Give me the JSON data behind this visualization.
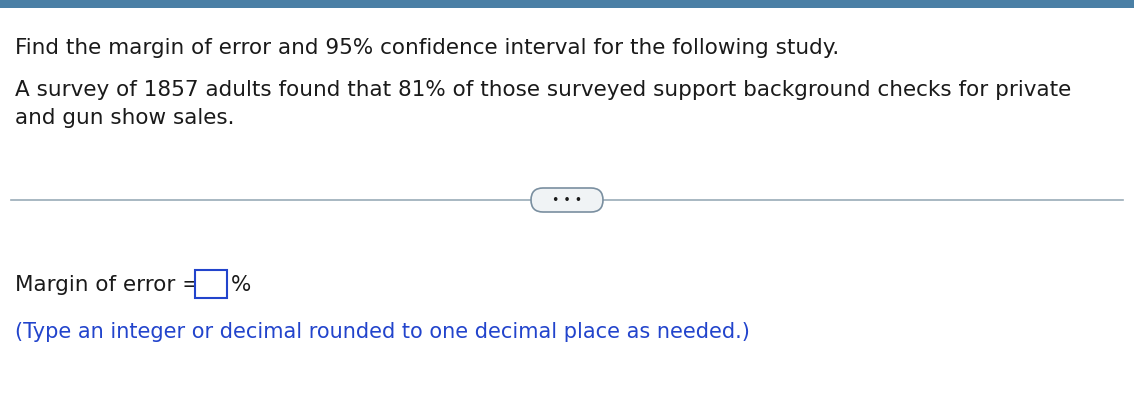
{
  "main_bg": "#ffffff",
  "top_bar_color": "#4a7fa5",
  "line1": "Find the margin of error and 95% confidence interval for the following study.",
  "line2a": "A survey of 1857 adults found that 81% of those surveyed support background checks for private",
  "line2b": "and gun show sales.",
  "label_text": "Margin of error = ",
  "percent_text": "%",
  "hint_text": "(Type an integer or decimal rounded to one decimal place as needed.)",
  "dots_text": "• • •",
  "text_color_black": "#1a1a1a",
  "text_color_blue": "#2244cc",
  "box_border_color": "#2244cc",
  "divider_color": "#9aabb8",
  "dots_border_color": "#7a8fa0",
  "dots_bg": "#f0f3f5",
  "font_size_main": 15.5,
  "font_size_hint": 15,
  "font_size_dots": 9
}
